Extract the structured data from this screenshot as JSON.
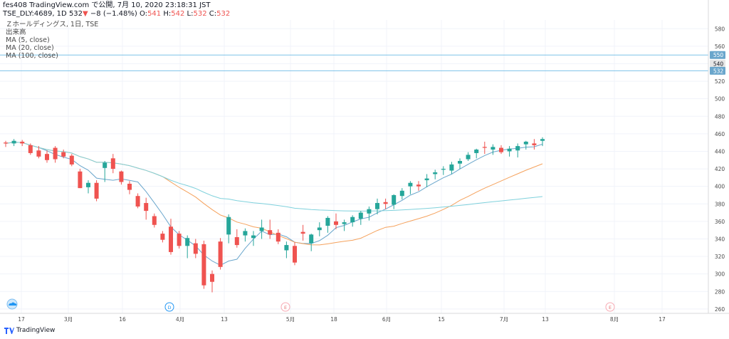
{
  "header": {
    "line1": "fes408 TradingView.com で公開, 7月 10, 2020 23:18:31 JST",
    "symbol": "TSE_DLY:4689, 1D",
    "last": "532",
    "change": "−8 (−1.48%)",
    "o_label": "O:",
    "o": "541",
    "h_label": "H:",
    "h": "542",
    "l_label": "L:",
    "l": "532",
    "c_label": "C:",
    "c": "532"
  },
  "legend": {
    "title": "Ｚホールディングス, 1日, TSE",
    "volume": "出来高",
    "ma5": "MA (5, close)",
    "ma20": "MA (20, close)",
    "ma100": "MA (100, close)"
  },
  "footer": {
    "brand": "TradingView"
  },
  "colors": {
    "up": "#26a69a",
    "down": "#ef5350",
    "ma5": "#6aa6cc",
    "ma20": "#f5a25d",
    "ma100": "#7fd1dc",
    "hline": "#7dc3e8"
  },
  "chart_data": {
    "type": "candlestick",
    "y_range": [
      255,
      590
    ],
    "y_ticks": [
      260,
      280,
      300,
      320,
      340,
      360,
      380,
      400,
      420,
      440,
      460,
      480,
      500,
      520,
      540,
      560,
      580
    ],
    "x_tick_labels": [
      "17",
      "3月",
      "16",
      "4月",
      "13",
      "5月",
      "18",
      "6月",
      "15",
      "7月",
      "13",
      "8月",
      "17"
    ],
    "price_labels": [
      {
        "value": 550,
        "text": "550"
      },
      {
        "value": 540,
        "text": "540"
      },
      {
        "value": 532,
        "text": "532"
      }
    ],
    "horizontal_lines": [
      550,
      532
    ],
    "event_markers": [
      "D",
      "E",
      "E"
    ],
    "candles": [
      {
        "o": 450,
        "h": 452,
        "l": 445,
        "c": 449
      },
      {
        "o": 449,
        "h": 454,
        "l": 446,
        "c": 452
      },
      {
        "o": 451,
        "h": 453,
        "l": 446,
        "c": 449
      },
      {
        "o": 447,
        "h": 449,
        "l": 436,
        "c": 438
      },
      {
        "o": 441,
        "h": 446,
        "l": 432,
        "c": 434
      },
      {
        "o": 437,
        "h": 441,
        "l": 427,
        "c": 430
      },
      {
        "o": 444,
        "h": 446,
        "l": 427,
        "c": 431
      },
      {
        "o": 439,
        "h": 442,
        "l": 432,
        "c": 434
      },
      {
        "o": 435,
        "h": 437,
        "l": 423,
        "c": 425
      },
      {
        "o": 417,
        "h": 420,
        "l": 398,
        "c": 398
      },
      {
        "o": 399,
        "h": 407,
        "l": 392,
        "c": 404
      },
      {
        "o": 404,
        "h": 407,
        "l": 383,
        "c": 386
      },
      {
        "o": 421,
        "h": 429,
        "l": 405,
        "c": 427
      },
      {
        "o": 432,
        "h": 437,
        "l": 415,
        "c": 420
      },
      {
        "o": 417,
        "h": 418,
        "l": 402,
        "c": 405
      },
      {
        "o": 403,
        "h": 406,
        "l": 391,
        "c": 396
      },
      {
        "o": 389,
        "h": 392,
        "l": 375,
        "c": 377
      },
      {
        "o": 381,
        "h": 387,
        "l": 362,
        "c": 372
      },
      {
        "o": 366,
        "h": 369,
        "l": 353,
        "c": 356
      },
      {
        "o": 346,
        "h": 349,
        "l": 336,
        "c": 339
      },
      {
        "o": 354,
        "h": 363,
        "l": 322,
        "c": 325
      },
      {
        "o": 346,
        "h": 349,
        "l": 329,
        "c": 332
      },
      {
        "o": 332,
        "h": 344,
        "l": 318,
        "c": 341
      },
      {
        "o": 335,
        "h": 340,
        "l": 318,
        "c": 323
      },
      {
        "o": 334,
        "h": 338,
        "l": 283,
        "c": 287
      },
      {
        "o": 300,
        "h": 304,
        "l": 279,
        "c": 291
      },
      {
        "o": 337,
        "h": 341,
        "l": 305,
        "c": 308
      },
      {
        "o": 345,
        "h": 368,
        "l": 335,
        "c": 365
      },
      {
        "o": 342,
        "h": 351,
        "l": 330,
        "c": 333
      },
      {
        "o": 344,
        "h": 352,
        "l": 337,
        "c": 349
      },
      {
        "o": 341,
        "h": 349,
        "l": 332,
        "c": 344
      },
      {
        "o": 349,
        "h": 362,
        "l": 340,
        "c": 353
      },
      {
        "o": 350,
        "h": 362,
        "l": 340,
        "c": 345
      },
      {
        "o": 347,
        "h": 351,
        "l": 334,
        "c": 337
      },
      {
        "o": 327,
        "h": 337,
        "l": 318,
        "c": 333
      },
      {
        "o": 332,
        "h": 336,
        "l": 310,
        "c": 313
      },
      {
        "o": 348,
        "h": 356,
        "l": 338,
        "c": 346
      },
      {
        "o": 335,
        "h": 346,
        "l": 326,
        "c": 345
      },
      {
        "o": 350,
        "h": 359,
        "l": 343,
        "c": 353
      },
      {
        "o": 355,
        "h": 366,
        "l": 347,
        "c": 364
      },
      {
        "o": 360,
        "h": 369,
        "l": 351,
        "c": 356
      },
      {
        "o": 357,
        "h": 362,
        "l": 349,
        "c": 359
      },
      {
        "o": 359,
        "h": 367,
        "l": 354,
        "c": 365
      },
      {
        "o": 363,
        "h": 372,
        "l": 356,
        "c": 370
      },
      {
        "o": 369,
        "h": 377,
        "l": 361,
        "c": 374
      },
      {
        "o": 374,
        "h": 386,
        "l": 368,
        "c": 381
      },
      {
        "o": 382,
        "h": 386,
        "l": 374,
        "c": 380
      },
      {
        "o": 379,
        "h": 391,
        "l": 374,
        "c": 390
      },
      {
        "o": 389,
        "h": 398,
        "l": 385,
        "c": 395
      },
      {
        "o": 400,
        "h": 406,
        "l": 391,
        "c": 404
      },
      {
        "o": 402,
        "h": 406,
        "l": 395,
        "c": 400
      },
      {
        "o": 407,
        "h": 414,
        "l": 399,
        "c": 409
      },
      {
        "o": 414,
        "h": 419,
        "l": 408,
        "c": 416
      },
      {
        "o": 419,
        "h": 423,
        "l": 413,
        "c": 420
      },
      {
        "o": 418,
        "h": 428,
        "l": 414,
        "c": 425
      },
      {
        "o": 426,
        "h": 432,
        "l": 420,
        "c": 429
      },
      {
        "o": 431,
        "h": 439,
        "l": 429,
        "c": 436
      },
      {
        "o": 438,
        "h": 443,
        "l": 432,
        "c": 442
      },
      {
        "o": 445,
        "h": 451,
        "l": 437,
        "c": 444
      },
      {
        "o": 442,
        "h": 448,
        "l": 436,
        "c": 445
      },
      {
        "o": 444,
        "h": 447,
        "l": 437,
        "c": 439
      },
      {
        "o": 440,
        "h": 446,
        "l": 434,
        "c": 443
      },
      {
        "o": 441,
        "h": 449,
        "l": 433,
        "c": 446
      },
      {
        "o": 448,
        "h": 452,
        "l": 442,
        "c": 451
      },
      {
        "o": 449,
        "h": 454,
        "l": 442,
        "c": 447
      },
      {
        "o": 452,
        "h": 456,
        "l": 446,
        "c": 454
      }
    ]
  }
}
